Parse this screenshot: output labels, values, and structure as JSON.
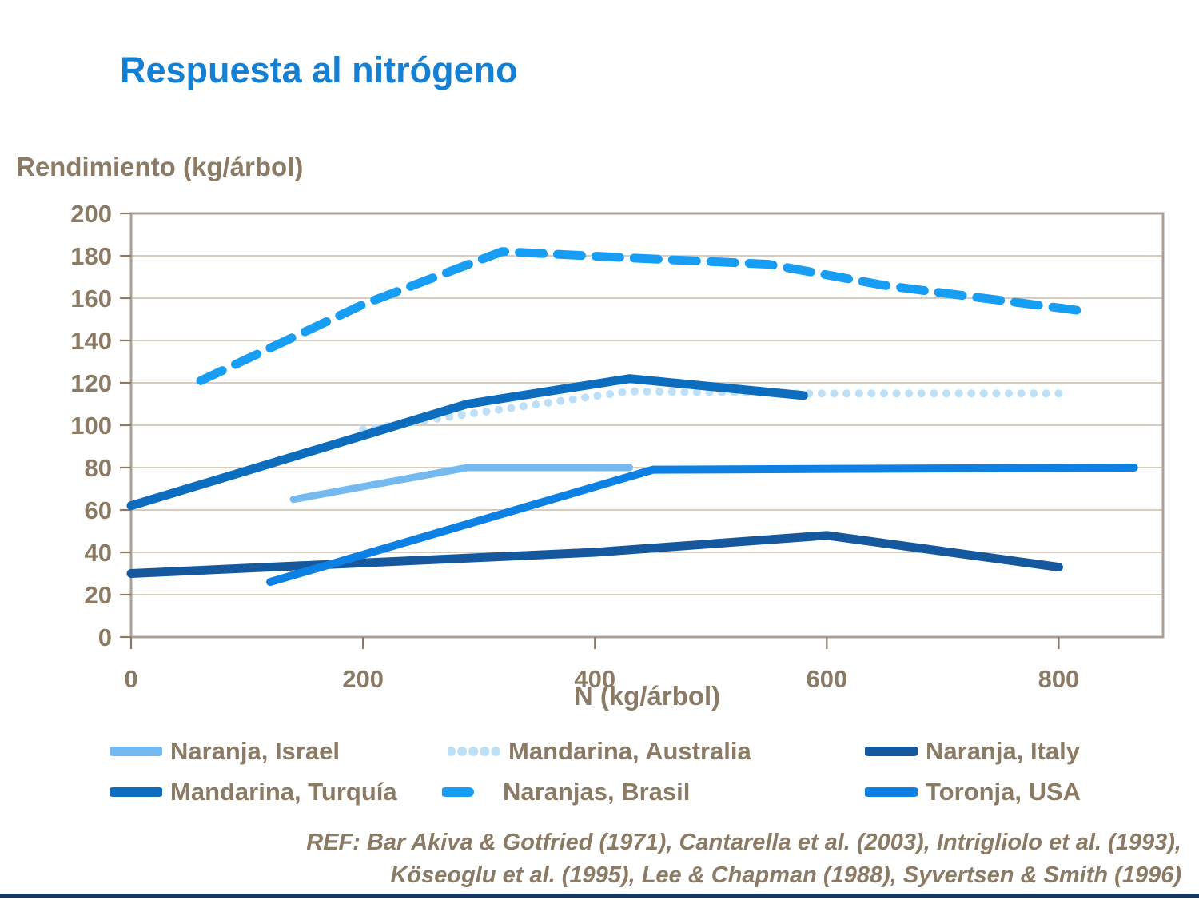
{
  "header": {
    "title": "Respuesta al nitrógeno",
    "title_color": "#1480D4"
  },
  "chart_data": {
    "type": "line",
    "title": "Respuesta al nitrógeno",
    "xlabel": "N (kg/árbol)",
    "ylabel": "Rendimiento (kg/árbol)",
    "xlim": [
      0,
      890
    ],
    "ylim": [
      0,
      200
    ],
    "x_ticks": [
      0,
      200,
      400,
      600,
      800
    ],
    "y_ticks": [
      0,
      20,
      40,
      60,
      80,
      100,
      120,
      140,
      160,
      180,
      200
    ],
    "grid": true,
    "legend_position": "bottom",
    "axis_text_color": "#8B7A64",
    "gridline_color": "#C9BCAC",
    "frame_color": "#ACA096",
    "series": [
      {
        "name": "Naranja, Israel",
        "color": "#74B9F0",
        "style": "solid",
        "width": 9,
        "points": [
          [
            140,
            65
          ],
          [
            290,
            80
          ],
          [
            430,
            80
          ]
        ]
      },
      {
        "name": "Mandarina, Australia",
        "color": "#BDDFF7",
        "style": "dotted",
        "width": 10,
        "points": [
          [
            200,
            98
          ],
          [
            300,
            106
          ],
          [
            430,
            116
          ],
          [
            580,
            115
          ],
          [
            800,
            115
          ]
        ]
      },
      {
        "name": "Naranja, Italy",
        "color": "#15589E",
        "style": "solid",
        "width": 11,
        "points": [
          [
            0,
            30
          ],
          [
            200,
            35
          ],
          [
            400,
            40
          ],
          [
            600,
            48
          ],
          [
            800,
            33
          ]
        ]
      },
      {
        "name": "Mandarina, Turquía",
        "color": "#0C6CBE",
        "style": "solid",
        "width": 11,
        "points": [
          [
            0,
            62
          ],
          [
            290,
            110
          ],
          [
            430,
            122
          ],
          [
            580,
            114
          ]
        ]
      },
      {
        "name": "Naranjas, Brasil",
        "color": "#189DF5",
        "style": "dashed",
        "width": 11,
        "points": [
          [
            60,
            121
          ],
          [
            200,
            157
          ],
          [
            320,
            182
          ],
          [
            430,
            179
          ],
          [
            550,
            176
          ],
          [
            650,
            166
          ],
          [
            820,
            154
          ]
        ]
      },
      {
        "name": "Toronja, USA",
        "color": "#0D80E3",
        "style": "solid",
        "width": 10,
        "points": [
          [
            120,
            26
          ],
          [
            450,
            79
          ],
          [
            865,
            80
          ]
        ]
      }
    ]
  },
  "footer": {
    "ref_line1": "REF: Bar Akiva & Gotfried  (1971), Cantarella et al. (2003), Intrigliolo et al. (1993),",
    "ref_line2": "Köseoglu et al. (1995), Lee & Chapman (1988), Syvertsen & Smith (1996)"
  },
  "accent_bar_color": "#17375E"
}
